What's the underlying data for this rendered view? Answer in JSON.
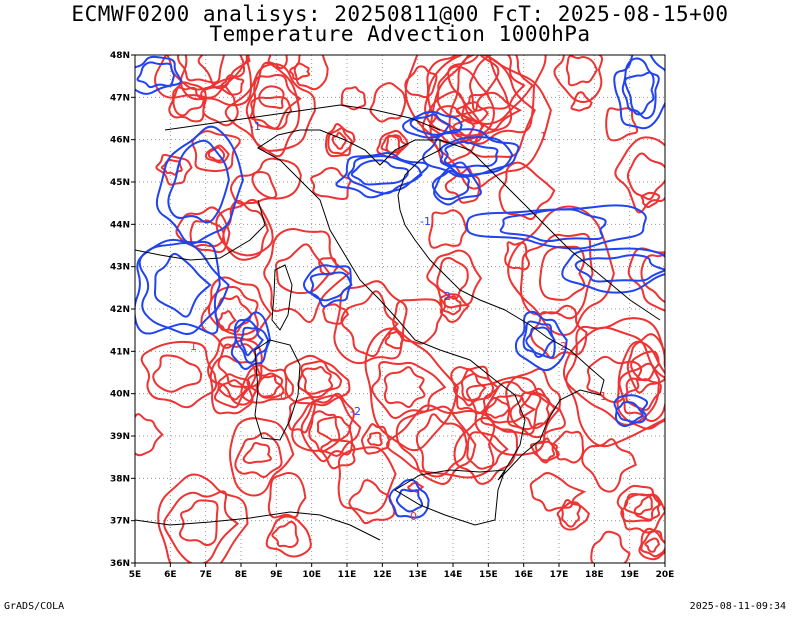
{
  "header": {
    "line1": "ECMWF0200 analisys: 20250811@00 FcT: 2025-08-15+00",
    "line2": "Temperature Advection 1000hPa"
  },
  "axes": {
    "lon_labels": [
      "5E",
      "6E",
      "7E",
      "8E",
      "9E",
      "10E",
      "11E",
      "12E",
      "13E",
      "14E",
      "15E",
      "16E",
      "17E",
      "18E",
      "19E",
      "20E"
    ],
    "lat_labels": [
      "48N",
      "47N",
      "46N",
      "45N",
      "44N",
      "43N",
      "42N",
      "41N",
      "40N",
      "39N",
      "38N",
      "37N",
      "36N"
    ],
    "lon_range": [
      5,
      20
    ],
    "lat_range": [
      36,
      48
    ]
  },
  "contours": {
    "positive_color": "#ee3333",
    "negative_color": "#2244ee",
    "coast_color": "#000000",
    "grid_color": "#999999",
    "sample_labels": [
      "1",
      "-1",
      "-2",
      "0",
      "2",
      "-1",
      "1",
      "-2",
      "0",
      "1"
    ]
  },
  "footer": {
    "left": "GrADS/COLA",
    "right": "2025-08-11-09:34"
  }
}
